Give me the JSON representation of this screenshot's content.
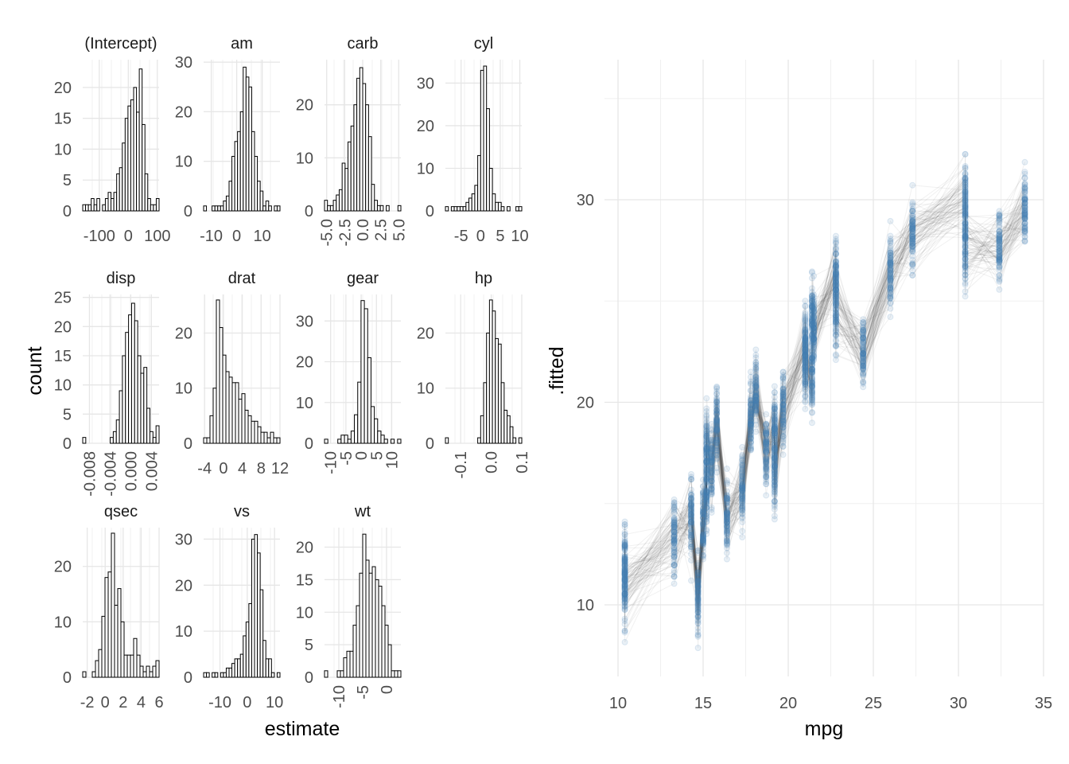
{
  "chart_data": [
    {
      "type": "histogram-facets",
      "xlabel": "estimate",
      "ylabel": "count",
      "panels": [
        {
          "title": "(Intercept)",
          "xlim": [
            -157,
            106
          ],
          "ylim": [
            0,
            24.5
          ],
          "xticks": [
            {
              "v": -100,
              "l": "-100"
            },
            {
              "v": 0,
              "l": "0"
            },
            {
              "v": 100,
              "l": "100"
            }
          ],
          "yticks": [
            0,
            5,
            10,
            15,
            20
          ],
          "counts": [
            1,
            1,
            1,
            2,
            1,
            2,
            0,
            1,
            2,
            3,
            2,
            3,
            6,
            7,
            11,
            15,
            17,
            18,
            20,
            16,
            23,
            14,
            6,
            2,
            1,
            1,
            2
          ]
        },
        {
          "title": "am",
          "xlim": [
            -13,
            17
          ],
          "ylim": [
            0,
            30.5
          ],
          "xticks": [
            {
              "v": -10,
              "l": "-10"
            },
            {
              "v": 0,
              "l": "0"
            },
            {
              "v": 10,
              "l": "10"
            }
          ],
          "yticks": [
            0,
            10,
            20,
            30
          ],
          "counts": [
            1,
            0,
            0,
            1,
            1,
            1,
            1,
            2,
            3,
            6,
            11,
            14,
            16,
            20,
            29,
            27,
            25,
            16,
            11,
            6,
            4,
            1,
            2,
            1,
            0,
            1,
            1
          ]
        },
        {
          "title": "carb",
          "xlim": [
            -5.3,
            5.3
          ],
          "ylim": [
            0,
            28.5
          ],
          "xticks": [
            {
              "v": -5,
              "l": "-5.0"
            },
            {
              "v": -2.5,
              "l": "-2.5"
            },
            {
              "v": 0,
              "l": "0.0"
            },
            {
              "v": 2.5,
              "l": "2.5"
            },
            {
              "v": 5,
              "l": "5.0"
            }
          ],
          "yticks": [
            0,
            10,
            20
          ],
          "counts": [
            2,
            1,
            1,
            2,
            3,
            4,
            9,
            8,
            13,
            16,
            20,
            25,
            27,
            24,
            20,
            14,
            5,
            2,
            1,
            1,
            0,
            1,
            0,
            0,
            0,
            1
          ]
        },
        {
          "title": "cyl",
          "xlim": [
            -9,
            10.5
          ],
          "ylim": [
            0,
            35.5
          ],
          "xticks": [
            {
              "v": -5,
              "l": "-5"
            },
            {
              "v": 0,
              "l": "0"
            },
            {
              "v": 5,
              "l": "5"
            },
            {
              "v": 10,
              "l": "10"
            }
          ],
          "yticks": [
            0,
            10,
            20,
            30
          ],
          "counts": [
            1,
            0,
            1,
            1,
            1,
            1,
            1,
            2,
            3,
            4,
            6,
            13,
            33,
            34,
            24,
            10,
            4,
            2,
            2,
            1,
            0,
            1,
            0,
            0,
            1,
            1
          ]
        },
        {
          "title": "disp",
          "xlim": [
            -0.0093,
            0.0055
          ],
          "ylim": [
            0,
            25.5
          ],
          "xticks": [
            {
              "v": -0.008,
              "l": "-0.008"
            },
            {
              "v": -0.004,
              "l": "-0.004"
            },
            {
              "v": 0,
              "l": "0.000"
            },
            {
              "v": 0.004,
              "l": "0.004"
            }
          ],
          "yticks": [
            0,
            5,
            10,
            15,
            20,
            25
          ],
          "counts": [
            1,
            0,
            0,
            0,
            0,
            0,
            0,
            0,
            0,
            1,
            2,
            4,
            9,
            15,
            19,
            22,
            24,
            21,
            15,
            12,
            13,
            6,
            2,
            1,
            3
          ]
        },
        {
          "title": "drat",
          "xlim": [
            -4.2,
            12
          ],
          "ylim": [
            0,
            27
          ],
          "xticks": [
            {
              "v": -4,
              "l": "-4"
            },
            {
              "v": 0,
              "l": "0"
            },
            {
              "v": 4,
              "l": "4"
            },
            {
              "v": 8,
              "l": "8"
            },
            {
              "v": 12,
              "l": "12"
            }
          ],
          "yticks": [
            0,
            10,
            20
          ],
          "counts": [
            1,
            1,
            5,
            10,
            26,
            21,
            16,
            13,
            12,
            11,
            11,
            8,
            9,
            6,
            5,
            4,
            4,
            3,
            2,
            2,
            1,
            2,
            1,
            1
          ]
        },
        {
          "title": "gear",
          "xlim": [
            -12,
            13
          ],
          "ylim": [
            0,
            36.5
          ],
          "xticks": [
            {
              "v": -10,
              "l": "-10"
            },
            {
              "v": -5,
              "l": "-5"
            },
            {
              "v": 0,
              "l": "0"
            },
            {
              "v": 5,
              "l": "5"
            },
            {
              "v": 10,
              "l": "10"
            }
          ],
          "yticks": [
            0,
            10,
            20,
            30
          ],
          "counts": [
            1,
            0,
            0,
            0,
            1,
            2,
            2,
            1,
            3,
            7,
            15,
            35,
            33,
            21,
            9,
            6,
            3,
            2,
            1,
            0,
            1,
            0,
            1
          ]
        },
        {
          "title": "hp",
          "xlim": [
            -0.15,
            0.1
          ],
          "ylim": [
            0,
            27
          ],
          "xticks": [
            {
              "v": -0.1,
              "l": "-0.1"
            },
            {
              "v": 0,
              "l": "0.0"
            },
            {
              "v": 0.1,
              "l": "0.1"
            }
          ],
          "yticks": [
            0,
            10,
            20
          ],
          "counts": [
            1,
            0,
            0,
            0,
            0,
            0,
            0,
            0,
            0,
            0,
            0,
            1,
            5,
            11,
            20,
            26,
            24,
            19,
            18,
            11,
            6,
            5,
            3,
            1,
            0,
            1
          ]
        },
        {
          "title": "qsec",
          "xlim": [
            -2.5,
            6
          ],
          "ylim": [
            0,
            27
          ],
          "xticks": [
            {
              "v": -2,
              "l": "-2"
            },
            {
              "v": 0,
              "l": "0"
            },
            {
              "v": 2,
              "l": "2"
            },
            {
              "v": 4,
              "l": "4"
            },
            {
              "v": 6,
              "l": "6"
            }
          ],
          "yticks": [
            0,
            10,
            20
          ],
          "counts": [
            1,
            0,
            0,
            1,
            3,
            5,
            11,
            18,
            19,
            26,
            13,
            16,
            10,
            4,
            4,
            4,
            7,
            4,
            2,
            1,
            2,
            1,
            2,
            3
          ]
        },
        {
          "title": "vs",
          "xlim": [
            -16,
            12
          ],
          "ylim": [
            0,
            32.5
          ],
          "xticks": [
            {
              "v": -10,
              "l": "-10"
            },
            {
              "v": 0,
              "l": "0"
            },
            {
              "v": 10,
              "l": "10"
            }
          ],
          "yticks": [
            0,
            10,
            20,
            30
          ],
          "counts": [
            1,
            1,
            0,
            1,
            1,
            0,
            1,
            1,
            2,
            2,
            3,
            4,
            4,
            5,
            9,
            12,
            16,
            30,
            31,
            27,
            19,
            8,
            4,
            4,
            1,
            0,
            1
          ]
        },
        {
          "title": "wt",
          "xlim": [
            -13,
            3
          ],
          "ylim": [
            0,
            23
          ],
          "xticks": [
            {
              "v": -10,
              "l": "-10"
            },
            {
              "v": -5,
              "l": "-5"
            },
            {
              "v": 0,
              "l": "0"
            }
          ],
          "yticks": [
            0,
            5,
            10,
            15,
            20
          ],
          "counts": [
            1,
            0,
            0,
            0,
            1,
            1,
            3,
            4,
            4,
            8,
            11,
            16,
            22,
            18,
            16,
            17,
            15,
            14,
            11,
            8,
            5,
            1,
            1,
            1
          ]
        }
      ]
    },
    {
      "type": "scatter",
      "xlabel": "mpg",
      "ylabel": ".fitted",
      "xlim": [
        9.5,
        35
      ],
      "ylim": [
        6.5,
        37
      ],
      "xticks": [
        10,
        15,
        20,
        25,
        30,
        35
      ],
      "yticks": [
        10,
        20,
        30
      ],
      "point_color": "#4682b4",
      "line_color": "#333333",
      "mpg": [
        21,
        21,
        22.8,
        21.4,
        18.7,
        18.1,
        14.3,
        24.4,
        22.8,
        19.2,
        17.8,
        16.4,
        17.3,
        15.2,
        10.4,
        10.4,
        14.7,
        32.4,
        30.4,
        33.9,
        21.5,
        15.5,
        15.2,
        13.3,
        19.2,
        27.3,
        26,
        30.4,
        15.8,
        19.7,
        15,
        21.4
      ],
      "fitted_mean": [
        22.6,
        22.1,
        26.3,
        21.2,
        17.7,
        20.4,
        14.4,
        22.5,
        24.4,
        18.7,
        19.2,
        14.2,
        15.6,
        15.7,
        12.0,
        10.9,
        10.5,
        27.8,
        29.9,
        29.5,
        23.6,
        16.9,
        17.7,
        13.3,
        16.7,
        28.3,
        26.6,
        27.6,
        18.9,
        19.7,
        13.9,
        24.4
      ]
    }
  ]
}
